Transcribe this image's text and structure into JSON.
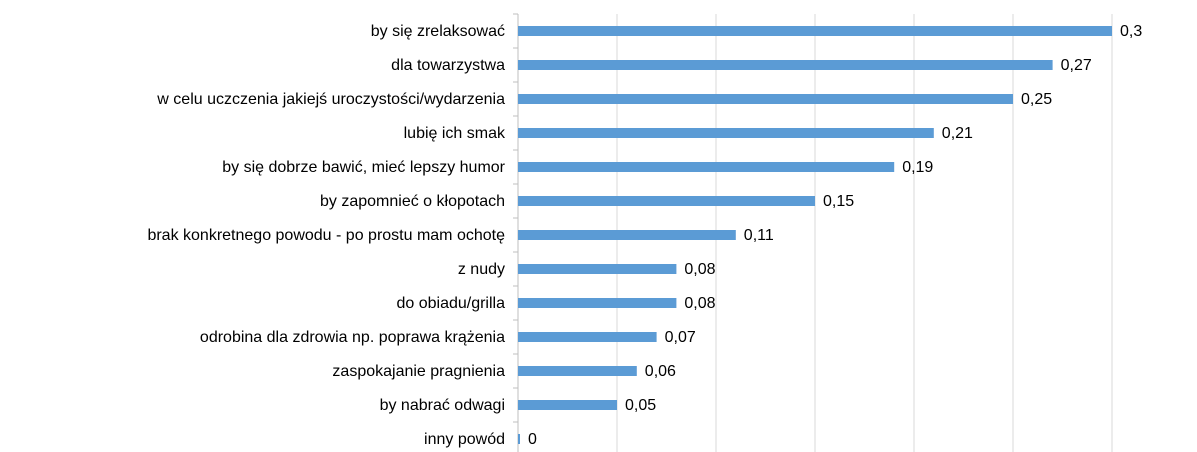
{
  "chart_data": {
    "type": "bar",
    "orientation": "horizontal",
    "categories": [
      "by się zrelaksować",
      "dla towarzystwa",
      "w celu uczczenia jakiejś uroczystości/wydarzenia",
      "lubię ich smak",
      "by się dobrze bawić, mieć lepszy humor",
      "by zapomnieć o kłopotach",
      "brak konkretnego powodu - po prostu mam ochotę",
      "z nudy",
      "do obiadu/grilla",
      "odrobina dla zdrowia np. poprawa krążenia",
      "zaspokajanie pragnienia",
      "by nabrać odwagi",
      "inny powód"
    ],
    "values": [
      0.3,
      0.27,
      0.25,
      0.21,
      0.19,
      0.15,
      0.11,
      0.08,
      0.08,
      0.07,
      0.06,
      0.05,
      0
    ],
    "value_labels": [
      "0,3",
      "0,27",
      "0,25",
      "0,21",
      "0,19",
      "0,15",
      "0,11",
      "0,08",
      "0,08",
      "0,07",
      "0,06",
      "0,05",
      "0"
    ],
    "color": "#5b9bd5",
    "xlim": [
      0,
      0.3
    ],
    "xticks": [
      0.05,
      0.1,
      0.15,
      0.2,
      0.25,
      0.3
    ],
    "grid": true
  }
}
